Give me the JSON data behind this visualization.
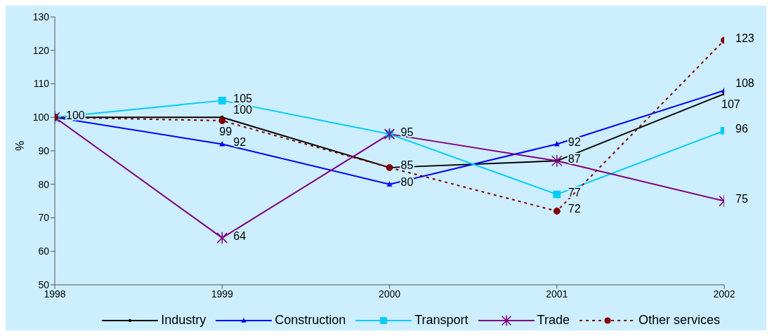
{
  "chart_data": {
    "type": "line",
    "ylabel": "%",
    "x": [
      1998,
      1999,
      2000,
      2001,
      2002
    ],
    "series": [
      {
        "name": "Industry",
        "color": "#000000",
        "values": [
          100,
          100,
          85,
          87,
          107
        ],
        "value_labels": [
          "100",
          "100",
          null,
          null,
          "107"
        ],
        "marker": "circle",
        "line_style": "solid"
      },
      {
        "name": "Construction",
        "color": "#0000ff",
        "values": [
          100,
          92,
          80,
          92,
          108
        ],
        "value_labels": [
          null,
          "92",
          "80",
          "92",
          "108"
        ],
        "marker": "triangle",
        "line_style": "solid"
      },
      {
        "name": "Transport",
        "color": "#00ccff",
        "values": [
          100,
          105,
          95,
          77,
          96
        ],
        "value_labels": [
          null,
          "105",
          null,
          "77",
          "96"
        ],
        "marker": "square",
        "line_style": "solid"
      },
      {
        "name": "Trade",
        "color": "#800080",
        "values": [
          100,
          64,
          95,
          87,
          75
        ],
        "value_labels": [
          null,
          "64",
          "95",
          "87",
          "75"
        ],
        "marker": "cross",
        "line_style": "solid"
      },
      {
        "name": "Other services",
        "color": "#800000",
        "values": [
          100,
          99,
          85,
          72,
          123
        ],
        "value_labels": [
          null,
          "99",
          "85",
          "72",
          "123"
        ],
        "marker": "circle",
        "line_style": "dashed"
      }
    ],
    "xlim": [
      1998,
      2002
    ],
    "xticks": [
      1998,
      1999,
      2000,
      2001,
      2002
    ],
    "ylim": [
      50,
      130
    ],
    "yticks": [
      50,
      60,
      70,
      80,
      90,
      100,
      110,
      120,
      130
    ],
    "grid": false,
    "legend": "bottom"
  }
}
